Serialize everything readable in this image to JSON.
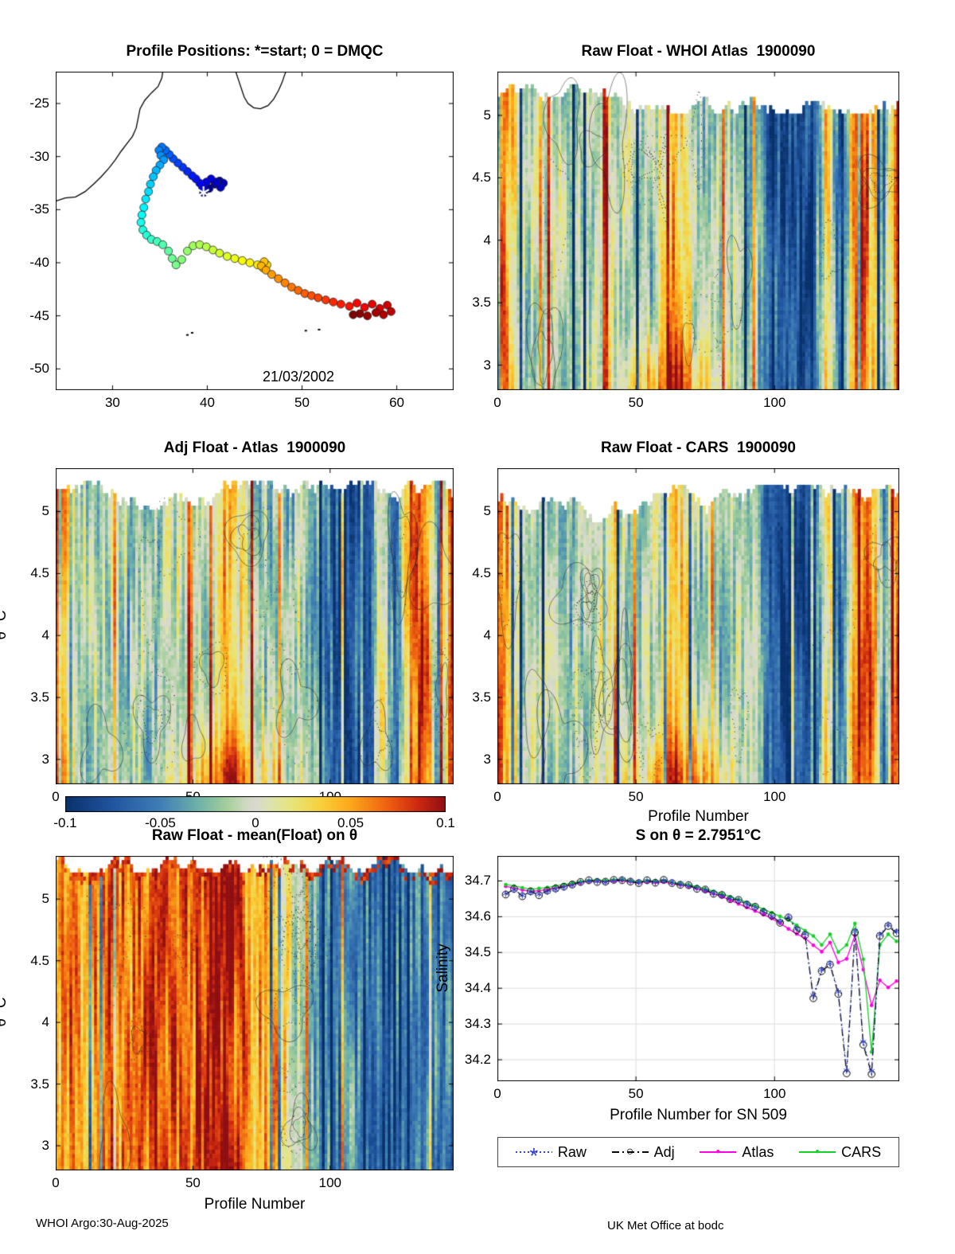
{
  "figure": {
    "footer_left": "WHOI Argo:30-Aug-2025",
    "footer_right": "UK Met Office at bodc"
  },
  "colorbar": {
    "lim": [
      -0.1,
      0.1
    ],
    "ticks": [
      -0.1,
      -0.05,
      0,
      0.05,
      0.1
    ]
  },
  "colormap": [
    [
      -0.1,
      "#08316c"
    ],
    [
      -0.075,
      "#2155a0"
    ],
    [
      -0.05,
      "#3f7fb5"
    ],
    [
      -0.03,
      "#6fb2a8"
    ],
    [
      -0.015,
      "#a5cf9b"
    ],
    [
      -0.005,
      "#cfd9c2"
    ],
    [
      0.0,
      "#d9d9d0"
    ],
    [
      0.008,
      "#dde3ae"
    ],
    [
      0.02,
      "#e8e476"
    ],
    [
      0.035,
      "#f8cf3a"
    ],
    [
      0.05,
      "#fba91c"
    ],
    [
      0.07,
      "#ee5f10"
    ],
    [
      0.085,
      "#cf2a10"
    ],
    [
      0.1,
      "#8f0e12"
    ]
  ],
  "chart_data": [
    {
      "id": "map",
      "type": "scatter",
      "title": "Profile Positions: *=start; 0 = DMQC",
      "date_label": "21/03/2002",
      "xlim": [
        24,
        66
      ],
      "ylim": [
        -52,
        -22
      ],
      "x_ticks": [
        30,
        40,
        50,
        60
      ],
      "y_ticks": [
        -25,
        -30,
        -35,
        -40,
        -45,
        -50
      ],
      "coastline": [
        [
          [
            24.0,
            -34.2
          ],
          [
            25.0,
            -33.9
          ],
          [
            26.1,
            -33.8
          ],
          [
            27.1,
            -33.3
          ],
          [
            28.0,
            -32.6
          ],
          [
            28.8,
            -31.9
          ],
          [
            29.6,
            -31.1
          ],
          [
            30.3,
            -30.3
          ],
          [
            30.9,
            -29.5
          ],
          [
            31.5,
            -28.8
          ],
          [
            32.1,
            -28.1
          ],
          [
            32.5,
            -27.3
          ],
          [
            32.7,
            -26.4
          ],
          [
            32.9,
            -25.5
          ],
          [
            33.4,
            -24.7
          ],
          [
            34.1,
            -24.0
          ],
          [
            34.8,
            -23.4
          ],
          [
            35.2,
            -22.6
          ],
          [
            35.3,
            -22.0
          ]
        ],
        [
          [
            43.0,
            -22.0
          ],
          [
            43.3,
            -22.8
          ],
          [
            43.6,
            -23.6
          ],
          [
            43.9,
            -24.4
          ],
          [
            44.3,
            -25.0
          ],
          [
            44.9,
            -25.4
          ],
          [
            45.6,
            -25.5
          ],
          [
            46.4,
            -25.2
          ],
          [
            47.0,
            -24.6
          ],
          [
            47.5,
            -23.8
          ],
          [
            47.9,
            -23.0
          ],
          [
            48.2,
            -22.2
          ],
          [
            48.3,
            -22.0
          ]
        ]
      ],
      "islands": [
        [
          37.9,
          -46.8
        ],
        [
          38.4,
          -46.6
        ],
        [
          50.4,
          -46.4
        ],
        [
          51.8,
          -46.3
        ]
      ],
      "trajectory": [
        [
          39.6,
          -33.4
        ],
        [
          40.2,
          -33.0
        ],
        [
          40.8,
          -32.6
        ],
        [
          41.3,
          -32.3
        ],
        [
          41.7,
          -32.5
        ],
        [
          41.4,
          -32.9
        ],
        [
          40.9,
          -32.4
        ],
        [
          40.4,
          -32.1
        ],
        [
          39.9,
          -32.4
        ],
        [
          39.5,
          -32.9
        ],
        [
          39.2,
          -32.5
        ],
        [
          38.8,
          -32.1
        ],
        [
          38.4,
          -31.8
        ],
        [
          37.9,
          -31.4
        ],
        [
          37.4,
          -31.0
        ],
        [
          36.9,
          -30.6
        ],
        [
          36.4,
          -30.2
        ],
        [
          36.0,
          -29.8
        ],
        [
          35.6,
          -29.4
        ],
        [
          35.2,
          -29.1
        ],
        [
          34.9,
          -29.4
        ],
        [
          35.1,
          -29.9
        ],
        [
          35.4,
          -30.3
        ],
        [
          35.0,
          -30.8
        ],
        [
          34.6,
          -31.3
        ],
        [
          34.3,
          -31.9
        ],
        [
          34.0,
          -32.6
        ],
        [
          33.8,
          -33.3
        ],
        [
          33.5,
          -34.0
        ],
        [
          33.3,
          -34.8
        ],
        [
          33.1,
          -35.5
        ],
        [
          33.0,
          -36.2
        ],
        [
          33.2,
          -36.9
        ],
        [
          33.6,
          -37.4
        ],
        [
          34.1,
          -37.8
        ],
        [
          34.7,
          -38.0
        ],
        [
          35.3,
          -38.3
        ],
        [
          35.9,
          -38.9
        ],
        [
          36.3,
          -39.6
        ],
        [
          36.7,
          -40.2
        ],
        [
          37.3,
          -39.7
        ],
        [
          37.9,
          -38.9
        ],
        [
          38.5,
          -38.4
        ],
        [
          39.2,
          -38.3
        ],
        [
          39.9,
          -38.5
        ],
        [
          40.6,
          -38.8
        ],
        [
          41.3,
          -39.1
        ],
        [
          42.1,
          -39.4
        ],
        [
          42.9,
          -39.6
        ],
        [
          43.7,
          -39.8
        ],
        [
          44.5,
          -40.0
        ],
        [
          45.3,
          -40.2
        ],
        [
          45.9,
          -40.5
        ],
        [
          46.3,
          -40.2
        ],
        [
          46.0,
          -39.9
        ],
        [
          45.7,
          -40.3
        ],
        [
          46.2,
          -40.7
        ],
        [
          46.8,
          -41.1
        ],
        [
          47.5,
          -41.5
        ],
        [
          48.2,
          -41.9
        ],
        [
          48.9,
          -42.3
        ],
        [
          49.6,
          -42.6
        ],
        [
          50.3,
          -42.9
        ],
        [
          51.0,
          -43.1
        ],
        [
          51.7,
          -43.3
        ],
        [
          52.5,
          -43.5
        ],
        [
          53.3,
          -43.7
        ],
        [
          54.1,
          -43.9
        ],
        [
          55.0,
          -44.1
        ],
        [
          55.8,
          -43.8
        ],
        [
          56.6,
          -44.2
        ],
        [
          57.4,
          -43.9
        ],
        [
          58.2,
          -44.3
        ],
        [
          59.0,
          -44.0
        ],
        [
          59.4,
          -44.6
        ],
        [
          58.6,
          -44.9
        ],
        [
          57.8,
          -44.7
        ],
        [
          56.9,
          -45.0
        ],
        [
          56.1,
          -44.8
        ],
        [
          55.4,
          -44.9
        ]
      ],
      "start_index": 0
    },
    {
      "id": "raw_whoi",
      "type": "heatmap",
      "title": "Raw Float - WHOI Atlas  1900090",
      "xlim": [
        0,
        145
      ],
      "ylim": [
        2.8,
        5.35
      ],
      "x_ticks": [
        0,
        50,
        100
      ],
      "y_ticks": [
        5,
        4.5,
        4,
        3.5,
        3
      ],
      "value_lim": [
        -0.1,
        0.1
      ],
      "seed": 7,
      "contours": 16,
      "top_range": [
        0.03,
        0.13
      ],
      "bottom_warm": true,
      "top_band": false,
      "coarse": [
        0.09,
        0.02,
        -0.012,
        -0.016,
        -0.008,
        -0.02,
        -0.014,
        -0.01,
        -0.004,
        -0.012,
        -0.016,
        -0.008,
        0.05,
        0.025,
        -0.012,
        -0.02,
        -0.014,
        -0.01,
        -0.022,
        -0.06,
        -0.09,
        -0.07,
        -0.088,
        0.03,
        -0.07,
        0.06,
        0.09,
        -0.05,
        0.095
      ]
    },
    {
      "id": "adj_atlas",
      "type": "heatmap",
      "title": "Adj Float - Atlas  1900090",
      "ylabel": "θ °C",
      "xlim": [
        0,
        145
      ],
      "ylim": [
        2.8,
        5.35
      ],
      "x_ticks": [
        0,
        50,
        100
      ],
      "y_ticks": [
        5,
        4.5,
        4,
        3.5,
        3
      ],
      "value_lim": [
        -0.1,
        0.1
      ],
      "seed": 13,
      "contours": 16,
      "top_range": [
        0.03,
        0.13
      ],
      "bottom_warm": true,
      "top_band": false,
      "coarse": [
        0.08,
        0.015,
        -0.014,
        -0.018,
        -0.006,
        -0.022,
        -0.012,
        -0.008,
        -0.006,
        -0.014,
        -0.018,
        -0.006,
        0.045,
        0.02,
        -0.014,
        -0.022,
        -0.012,
        -0.012,
        -0.024,
        -0.055,
        -0.085,
        -0.065,
        -0.09,
        0.025,
        -0.065,
        0.055,
        0.085,
        -0.045,
        0.09
      ]
    },
    {
      "id": "raw_cars",
      "type": "heatmap",
      "title": "Raw Float - CARS  1900090",
      "xlabel": "Profile Number",
      "xlim": [
        0,
        145
      ],
      "ylim": [
        2.8,
        5.35
      ],
      "x_ticks": [
        0,
        50,
        100
      ],
      "y_ticks": [
        5,
        4.5,
        4,
        3.5,
        3
      ],
      "value_lim": [
        -0.1,
        0.1
      ],
      "seed": 29,
      "contours": 15,
      "top_range": [
        0.04,
        0.16
      ],
      "bottom_warm": true,
      "top_band": false,
      "coarse": [
        0.085,
        0.018,
        -0.01,
        -0.014,
        -0.01,
        -0.018,
        -0.016,
        -0.008,
        -0.002,
        -0.01,
        -0.014,
        -0.01,
        0.048,
        0.022,
        -0.01,
        -0.018,
        -0.016,
        -0.008,
        -0.02,
        -0.058,
        -0.088,
        -0.068,
        -0.086,
        0.028,
        -0.068,
        0.058,
        0.088,
        -0.048,
        0.092
      ]
    },
    {
      "id": "mean_float",
      "type": "heatmap",
      "title": "Raw Float - mean(Float) on θ",
      "ylabel": "θ °C",
      "xlabel": "Profile Number",
      "xlim": [
        0,
        145
      ],
      "ylim": [
        2.8,
        5.35
      ],
      "x_ticks": [
        0,
        50,
        100
      ],
      "y_ticks": [
        5,
        4.5,
        4,
        3.5,
        3
      ],
      "value_lim": [
        -0.1,
        0.1
      ],
      "seed": 43,
      "contours": 12,
      "top_range": [
        0.0,
        0.05
      ],
      "bottom_warm": false,
      "top_band": true,
      "coarse": [
        0.055,
        0.065,
        0.05,
        0.06,
        0.075,
        0.055,
        0.065,
        0.085,
        0.075,
        0.06,
        0.075,
        0.085,
        0.09,
        0.07,
        0.04,
        0.05,
        0.02,
        -0.01,
        -0.04,
        -0.05,
        -0.058,
        -0.05,
        -0.055,
        -0.048,
        -0.058,
        -0.05,
        -0.055,
        -0.058,
        -0.05
      ]
    },
    {
      "id": "s_on_theta",
      "type": "line",
      "title": "S on θ = 2.7951°C",
      "xlabel": "Profile Number for SN 509",
      "ylabel": "Salinity",
      "xlim": [
        0,
        145
      ],
      "ylim": [
        34.14,
        34.77
      ],
      "x_ticks": [
        0,
        50,
        100
      ],
      "y_ticks": [
        34.2,
        34.3,
        34.4,
        34.5,
        34.6,
        34.7
      ],
      "grid": true,
      "x": [
        3,
        6,
        9,
        12,
        15,
        18,
        21,
        24,
        27,
        30,
        33,
        36,
        39,
        42,
        45,
        48,
        51,
        54,
        57,
        60,
        63,
        66,
        69,
        72,
        75,
        78,
        81,
        84,
        87,
        90,
        93,
        96,
        99,
        102,
        105,
        108,
        111,
        114,
        117,
        120,
        123,
        126,
        129,
        132,
        135,
        138,
        141,
        144
      ],
      "series": [
        {
          "name": "Raw",
          "color": "#3344cc",
          "marker": "asterisk",
          "line": "dotted",
          "y": [
            34.665,
            34.675,
            34.66,
            34.668,
            34.663,
            34.67,
            34.676,
            34.682,
            34.688,
            34.695,
            34.7,
            34.699,
            34.696,
            34.701,
            34.704,
            34.7,
            34.696,
            34.7,
            34.697,
            34.701,
            34.696,
            34.691,
            34.686,
            34.68,
            34.674,
            34.666,
            34.659,
            34.651,
            34.645,
            34.636,
            34.626,
            34.615,
            34.601,
            34.586,
            34.6,
            34.566,
            34.552,
            34.38,
            34.452,
            34.47,
            34.39,
            34.17,
            34.56,
            34.25,
            34.168,
            34.55,
            34.578,
            34.558
          ]
        },
        {
          "name": "Adj",
          "color": "#000000",
          "marker": "circle",
          "line": "dashdot",
          "y": [
            34.662,
            34.678,
            34.657,
            34.671,
            34.66,
            34.673,
            34.679,
            34.684,
            34.69,
            34.697,
            34.702,
            34.697,
            34.698,
            34.703,
            34.702,
            34.698,
            34.694,
            34.702,
            34.695,
            34.703,
            34.694,
            34.689,
            34.688,
            34.678,
            34.676,
            34.664,
            34.661,
            34.649,
            34.647,
            34.634,
            34.628,
            34.613,
            34.603,
            34.583,
            34.598,
            34.562,
            34.548,
            34.372,
            34.448,
            34.466,
            34.384,
            34.162,
            34.556,
            34.242,
            34.16,
            34.546,
            34.574,
            34.554
          ]
        },
        {
          "name": "Atlas",
          "color": "#ff00e0",
          "marker": "dot",
          "line": "solid",
          "y": [
            34.685,
            34.68,
            34.675,
            34.671,
            34.673,
            34.676,
            34.681,
            34.686,
            34.69,
            34.695,
            34.699,
            34.7,
            34.698,
            34.7,
            34.701,
            34.698,
            34.695,
            34.698,
            34.696,
            34.697,
            34.693,
            34.689,
            34.685,
            34.679,
            34.672,
            34.664,
            34.656,
            34.646,
            34.636,
            34.626,
            34.616,
            34.606,
            34.595,
            34.582,
            34.566,
            34.552,
            34.54,
            34.52,
            34.502,
            34.528,
            34.472,
            34.482,
            34.548,
            34.452,
            34.352,
            34.422,
            34.402,
            34.42
          ]
        },
        {
          "name": "CARS",
          "color": "#18d02a",
          "marker": "dot",
          "line": "solid",
          "y": [
            34.69,
            34.686,
            34.681,
            34.677,
            34.679,
            34.682,
            34.686,
            34.69,
            34.694,
            34.698,
            34.701,
            34.703,
            34.701,
            34.703,
            34.704,
            34.701,
            34.698,
            34.701,
            34.699,
            34.701,
            34.696,
            34.693,
            34.689,
            34.684,
            34.678,
            34.671,
            34.664,
            34.656,
            34.648,
            34.64,
            34.631,
            34.621,
            34.611,
            34.601,
            34.591,
            34.576,
            34.561,
            34.546,
            34.521,
            34.551,
            34.501,
            34.521,
            34.581,
            34.481,
            34.222,
            34.521,
            34.551,
            34.531
          ]
        }
      ]
    }
  ]
}
